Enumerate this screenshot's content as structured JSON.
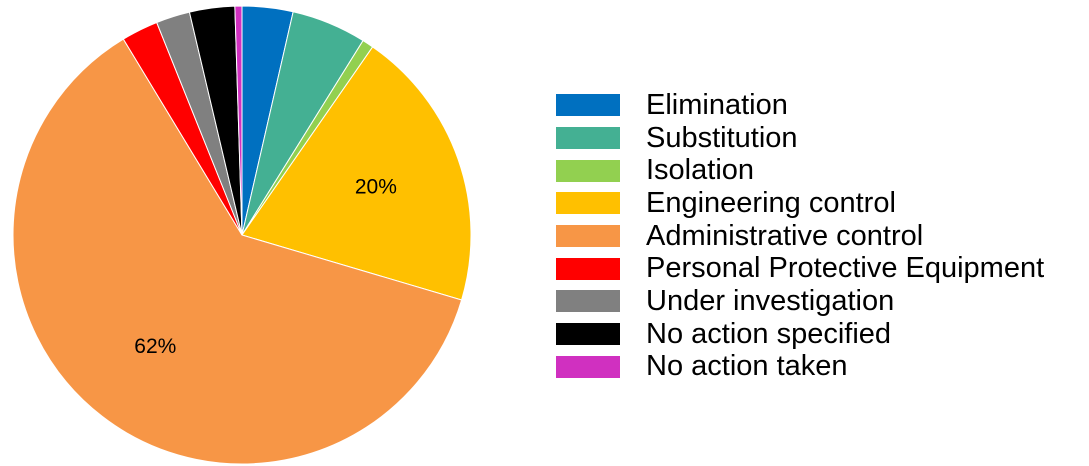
{
  "chart_data": {
    "type": "pie",
    "title": "",
    "start_angle": "top",
    "direction": "clockwise",
    "legend_position": "right",
    "slices": [
      {
        "label": "Elimination",
        "value": 3.6,
        "color": "#0070C0",
        "data_label": ""
      },
      {
        "label": "Substitution",
        "value": 5.3,
        "color": "#44B093",
        "data_label": ""
      },
      {
        "label": "Isolation",
        "value": 0.8,
        "color": "#92D050",
        "data_label": ""
      },
      {
        "label": "Engineering control",
        "value": 20,
        "color": "#FFC000",
        "data_label": "20%"
      },
      {
        "label": "Administrative control",
        "value": 62,
        "color": "#F79646",
        "data_label": "62%"
      },
      {
        "label": "Personal Protective Equipment",
        "value": 2.6,
        "color": "#FF0000",
        "data_label": ""
      },
      {
        "label": "Under investigation",
        "value": 2.4,
        "color": "#808080",
        "data_label": ""
      },
      {
        "label": "No action specified",
        "value": 3.2,
        "color": "#000000",
        "data_label": ""
      },
      {
        "label": "No action taken",
        "value": 0.5,
        "color": "#D030C0",
        "data_label": ""
      }
    ]
  }
}
